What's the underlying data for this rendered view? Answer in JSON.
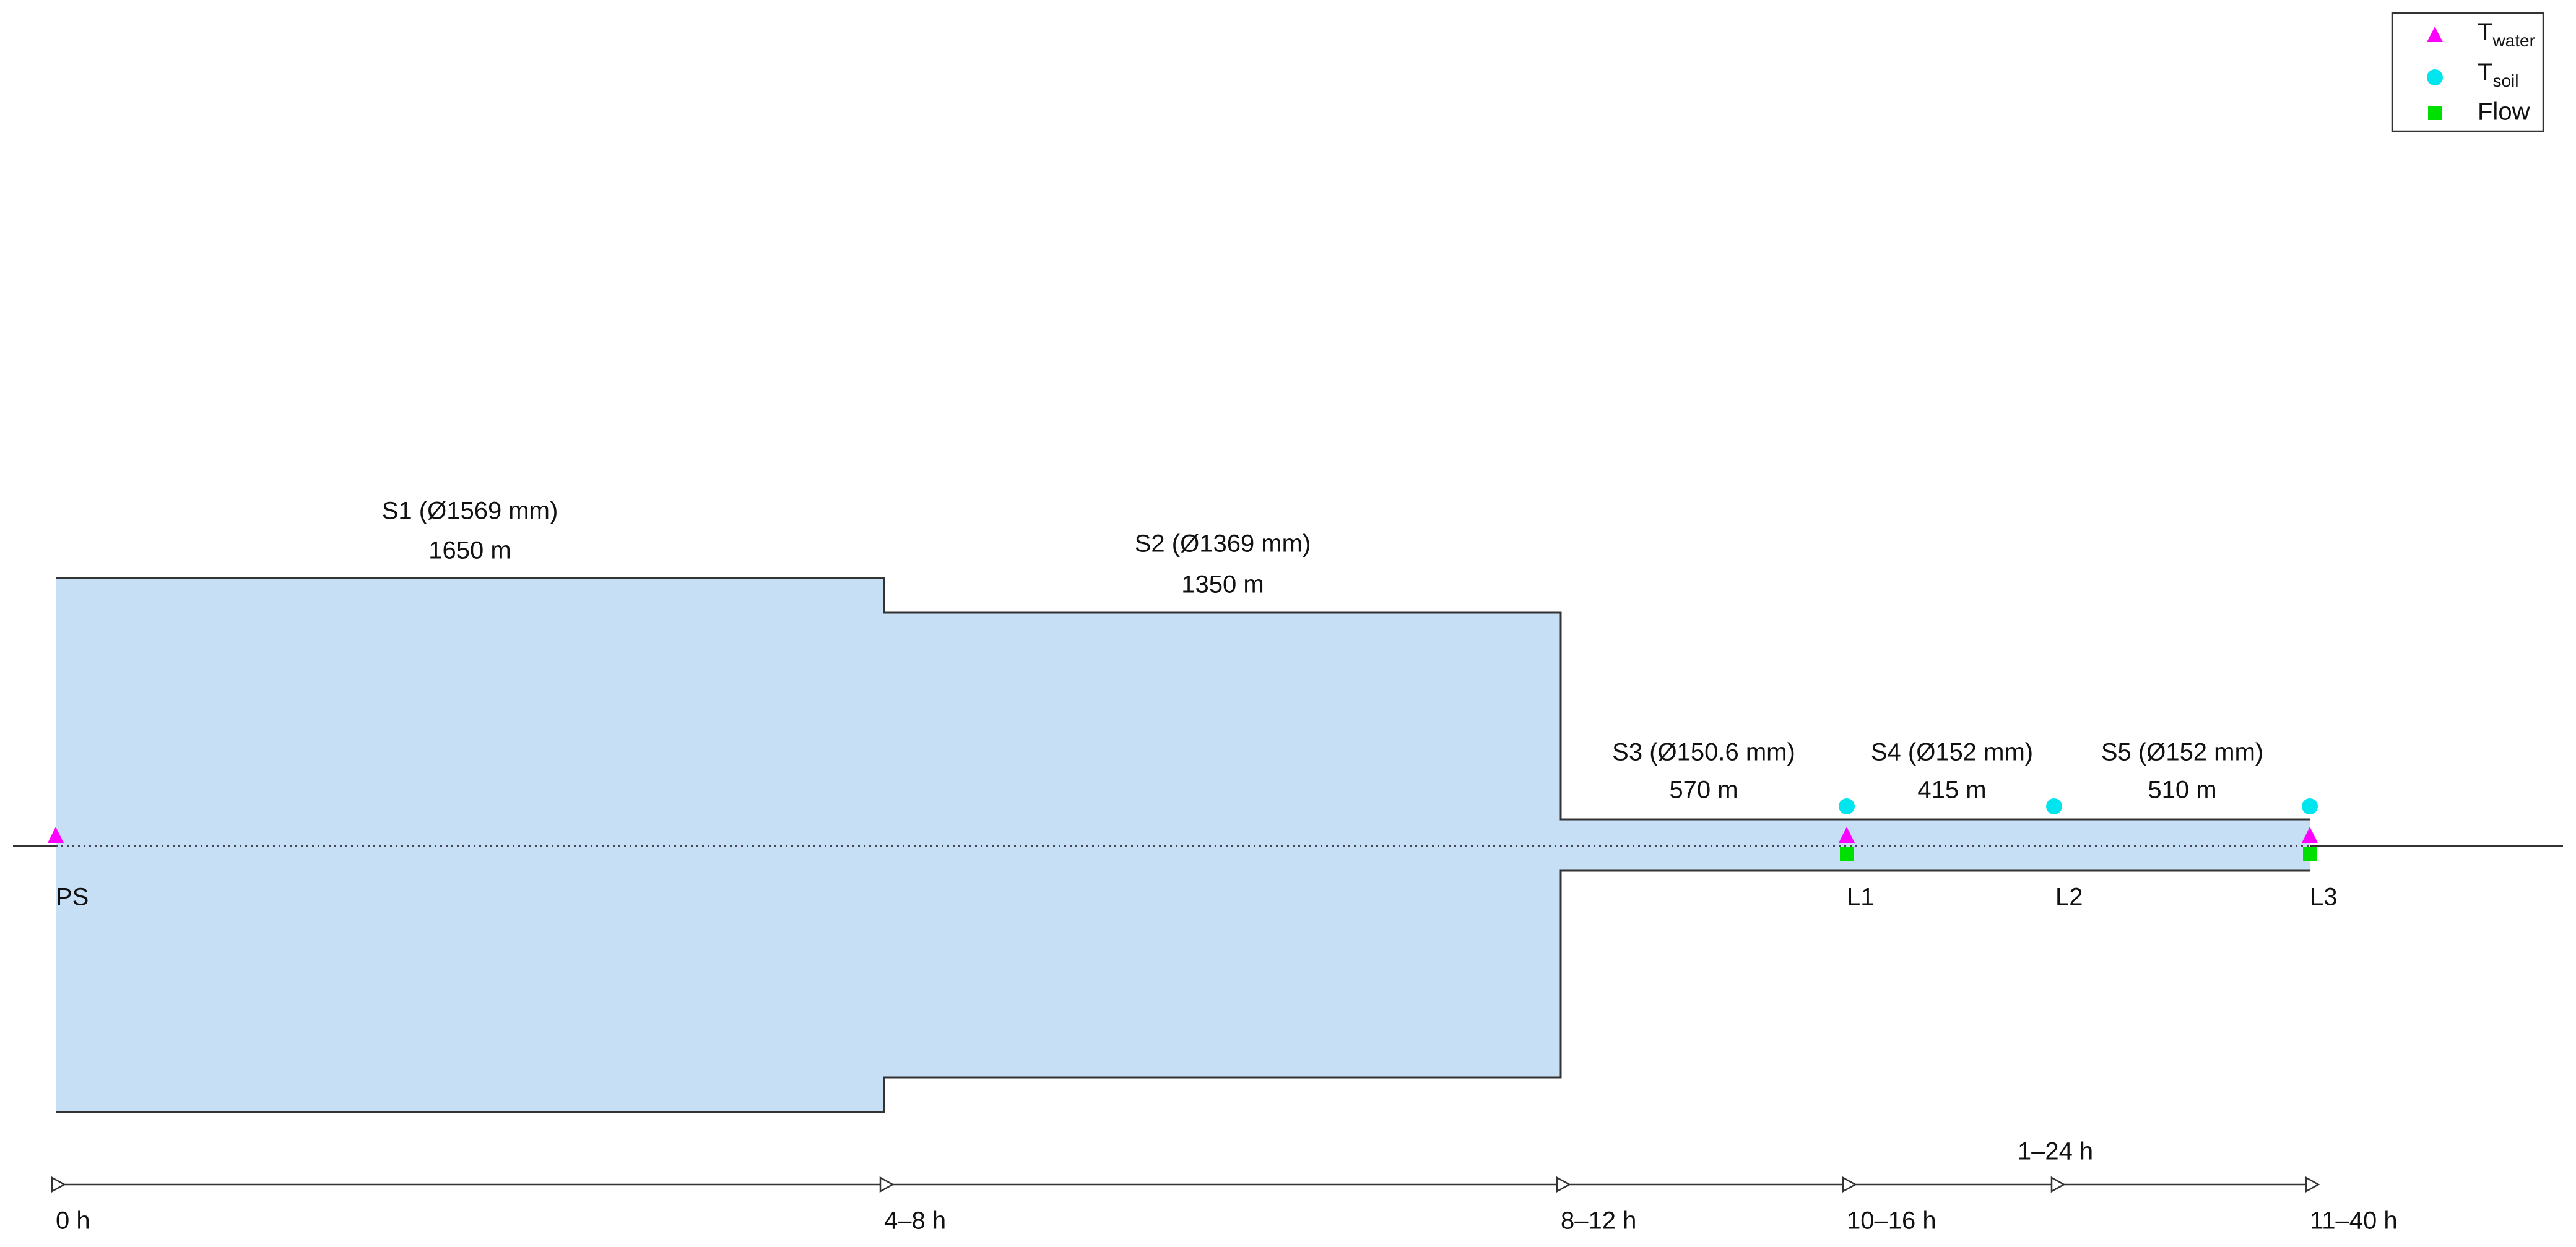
{
  "segments": [
    {
      "label": "S1 (Ø1569 mm)",
      "length": "1650 m"
    },
    {
      "label": "S2 (Ø1369 mm)",
      "length": "1350 m"
    },
    {
      "label": "S3 (Ø150.6 mm)",
      "length": "570 m"
    },
    {
      "label": "S4 (Ø152 mm)",
      "length": "415 m"
    },
    {
      "label": "S5 (Ø152 mm)",
      "length": "510 m"
    }
  ],
  "locations": [
    "PS",
    "L1",
    "L2",
    "L3"
  ],
  "timeline": {
    "labels": [
      "0 h",
      "4–8 h",
      "8–12 h",
      "10–16 h",
      "11–40 h"
    ],
    "extra": "1–24 h"
  },
  "legend": [
    {
      "symbol": "T",
      "subscript": "water"
    },
    {
      "symbol": "T",
      "subscript": "soil"
    },
    {
      "label": "Flow"
    }
  ]
}
